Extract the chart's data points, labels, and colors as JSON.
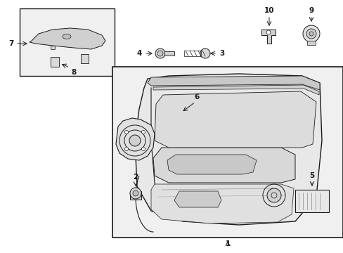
{
  "bg_color": "#ffffff",
  "fig_width": 4.89,
  "fig_height": 3.6,
  "dpi": 100,
  "line_color": "#1a1a1a",
  "light_gray": "#e8e8e8",
  "mid_gray": "#d0d0d0",
  "dark_gray": "#a0a0a0"
}
